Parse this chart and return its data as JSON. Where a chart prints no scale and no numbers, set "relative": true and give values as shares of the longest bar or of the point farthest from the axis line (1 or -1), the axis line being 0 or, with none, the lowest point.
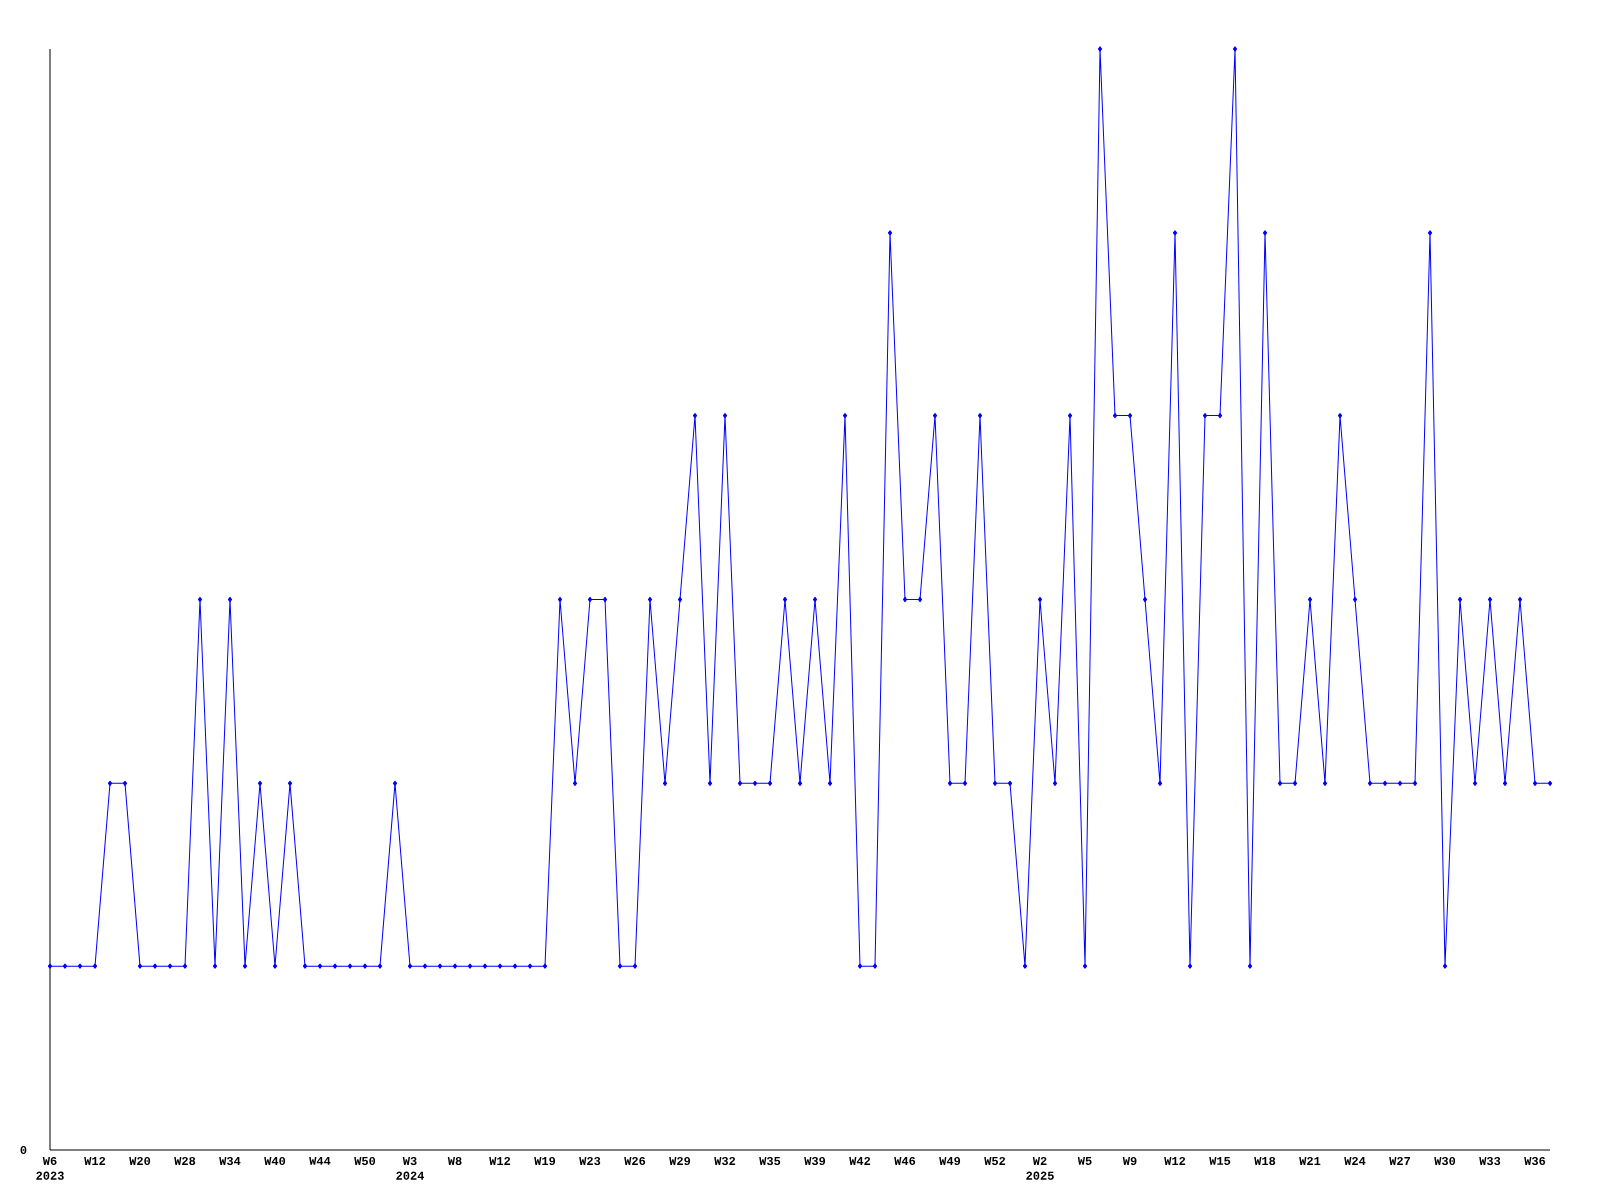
{
  "chart_data": {
    "type": "line",
    "relative": true,
    "marker": "diamond",
    "color": "#0000ff",
    "categories": [
      "W6 2023",
      null,
      null,
      "W12",
      null,
      null,
      "W20",
      null,
      null,
      "W28",
      null,
      null,
      "W34",
      null,
      null,
      "W40",
      null,
      null,
      "W44",
      null,
      null,
      "W50",
      null,
      null,
      "W3 2024",
      null,
      null,
      "W8",
      null,
      null,
      "W12",
      null,
      null,
      "W19",
      null,
      null,
      "W23",
      null,
      null,
      "W26",
      null,
      null,
      "W29",
      null,
      null,
      "W32",
      null,
      null,
      "W35",
      null,
      null,
      "W39",
      null,
      null,
      "W42",
      null,
      null,
      "W46",
      null,
      null,
      "W49",
      null,
      null,
      "W52",
      null,
      null,
      "W2 2025",
      null,
      null,
      "W5",
      null,
      null,
      "W9",
      null,
      null,
      "W12",
      null,
      null,
      "W15",
      null,
      null,
      "W18",
      null,
      null,
      "W21",
      null,
      null,
      "W24",
      null,
      null,
      "W27",
      null,
      null,
      "W30",
      null,
      null,
      "W33",
      null,
      null,
      "W36",
      null
    ],
    "values": [
      0.167,
      0.167,
      0.167,
      0.167,
      0.333,
      0.333,
      0.167,
      0.167,
      0.167,
      0.167,
      0.5,
      0.167,
      0.5,
      0.167,
      0.333,
      0.167,
      0.333,
      0.167,
      0.167,
      0.167,
      0.167,
      0.167,
      0.167,
      0.333,
      0.167,
      0.167,
      0.167,
      0.167,
      0.167,
      0.167,
      0.167,
      0.167,
      0.167,
      0.167,
      0.5,
      0.333,
      0.5,
      0.5,
      0.167,
      0.167,
      0.5,
      0.333,
      0.5,
      0.667,
      0.333,
      0.667,
      0.333,
      0.333,
      0.333,
      0.5,
      0.333,
      0.5,
      0.333,
      0.667,
      0.167,
      0.167,
      0.833,
      0.5,
      0.5,
      0.667,
      0.333,
      0.333,
      0.667,
      0.333,
      0.333,
      0.167,
      0.5,
      0.333,
      0.667,
      0.167,
      1,
      0.667,
      0.667,
      0.5,
      0.333,
      0.833,
      0.167,
      0.667,
      0.667,
      1,
      0.167,
      0.833,
      0.333,
      0.333,
      0.5,
      0.333,
      0.667,
      0.5,
      0.333,
      0.333,
      0.333,
      0.333,
      0.833,
      0.167,
      0.5,
      0.333,
      0.5,
      0.333,
      0.5,
      0.333,
      0.333
    ],
    "annotations": [
      "0"
    ]
  }
}
